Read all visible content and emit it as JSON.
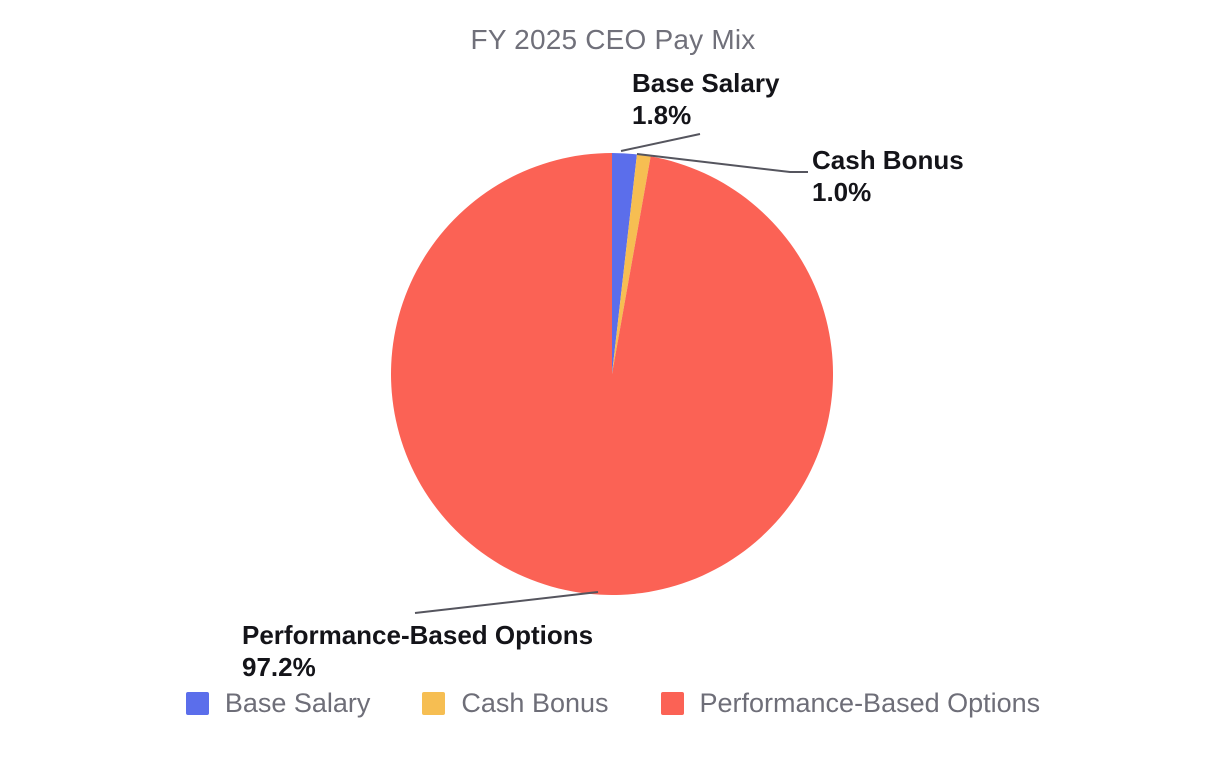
{
  "chart_data": {
    "type": "pie",
    "title": "FY 2025 CEO Pay Mix",
    "categories": [
      "Base Salary",
      "Cash Bonus",
      "Performance-Based Options"
    ],
    "values": [
      1.8,
      1.0,
      97.2
    ],
    "unit": "percent",
    "start_angle_deg": 0,
    "direction": "clockwise",
    "colors": [
      "#5B6EEB",
      "#F6BE52",
      "#FB6255"
    ],
    "legend_position": "bottom",
    "slice_labels": [
      {
        "name": "Base Salary",
        "value_text": "1.8%"
      },
      {
        "name": "Cash Bonus",
        "value_text": "1.0%"
      },
      {
        "name": "Performance-Based Options",
        "value_text": "97.2%"
      }
    ]
  },
  "labels": {
    "base_salary": {
      "name": "Base Salary",
      "value": "1.8%"
    },
    "cash_bonus": {
      "name": "Cash Bonus",
      "value": "1.0%"
    },
    "performance": {
      "name": "Performance-Based Options",
      "value": "97.2%"
    }
  },
  "legend": {
    "items": [
      {
        "label": "Base Salary",
        "color": "#5B6EEB"
      },
      {
        "label": "Cash Bonus",
        "color": "#F6BE52"
      },
      {
        "label": "Performance-Based Options",
        "color": "#FB6255"
      }
    ]
  },
  "theme": {
    "background": "#FFFFFF",
    "title_color": "#70707A",
    "label_color": "#141419",
    "legend_text_color": "#6E6E78",
    "leader_line_color": "#55555E"
  }
}
